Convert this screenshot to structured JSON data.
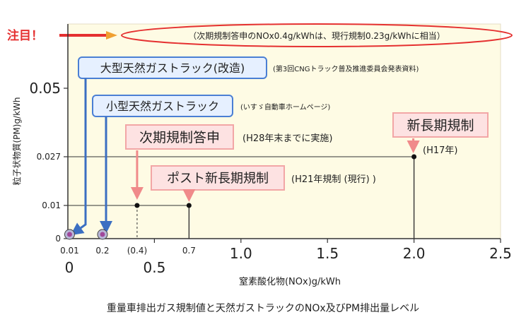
{
  "callout": {
    "attention_label": "注目！",
    "note": "（次期規制答申のNOx0.4g/kWhは、現行規制0.23g/kWhに相当）"
  },
  "chart_data": {
    "type": "scatter",
    "title": "",
    "caption": "重量車排出ガス規制値と天然ガストラックのNOx及びPM排出量レベル",
    "xlabel": "窒素酸化物(NOx)g/kWh",
    "ylabel": "粒子状物質(PM)g/kWh",
    "xlim": [
      0,
      2.5
    ],
    "x_major_ticks": [
      {
        "label": "0",
        "value": 0
      },
      {
        "label": "0.5",
        "value": 0.5
      },
      {
        "label": "1.0",
        "value": 1.0
      },
      {
        "label": "1.5",
        "value": 1.5
      },
      {
        "label": "2.0",
        "value": 2.0
      },
      {
        "label": "2.5",
        "value": 2.5
      }
    ],
    "x_minor_ticks": [
      {
        "label": "0.01",
        "value": 0.01
      },
      {
        "label": "0.2",
        "value": 0.2
      },
      {
        "label": "(0.4)",
        "value": 0.4
      },
      {
        "label": "0.7",
        "value": 0.7
      }
    ],
    "y_ticks": [
      {
        "label": "0",
        "value": 0
      },
      {
        "label": "0.01",
        "value": 0.01
      },
      {
        "label": "0.027",
        "value": 0.027
      },
      {
        "label": "0.05",
        "value": 0.05
      }
    ],
    "points": [
      {
        "label": "新長期規制",
        "sublabel": "(H17年)",
        "x": 2.0,
        "y": 0.027,
        "kind": "regulation"
      },
      {
        "label": "ポスト新長期規制",
        "sublabel": "(H21年規制 (現行) )",
        "x": 0.7,
        "y": 0.01,
        "kind": "regulation"
      },
      {
        "label": "次期規制答申",
        "sublabel": "(H28年末までに実施)",
        "x": 0.4,
        "y": 0.01,
        "kind": "proposal"
      },
      {
        "label": "大型天然ガストラック(改造)",
        "sublabel": "(第3回CNGトラック普及推進委員会発表資料)",
        "x": 0.01,
        "y": 0,
        "kind": "cng"
      },
      {
        "label": "小型天然ガストラック",
        "sublabel": "(いすゞ自動車ホームページ)",
        "x": 0.2,
        "y": 0,
        "kind": "cng"
      }
    ],
    "colors": {
      "plot_background": "#fefbe4",
      "regulation_box_fill": "#fde2e2",
      "regulation_box_border": "#f2a6a6",
      "regulation_arrow": "#f08a8a",
      "cng_box_fill": "#e6f0ff",
      "cng_box_border": "#4a7fd4",
      "cng_arrow": "#3b6fc2",
      "attention": "#e53030",
      "cng_marker": "#a0489a"
    }
  }
}
